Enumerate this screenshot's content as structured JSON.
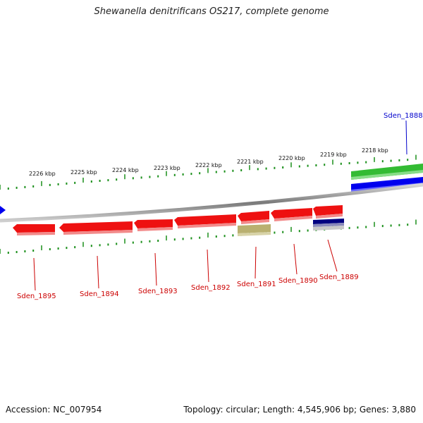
{
  "title": "Shewanella denitrificans OS217, complete genome",
  "footer": {
    "accession": "Accession: NC_007954",
    "stats": "Topology: circular; Length: 4,545,906 bp; Genes: 3,880"
  },
  "colors": {
    "forward_tick": "#1a8f1a",
    "backbone": "#8a8a8a",
    "gene_red": "#ee1111",
    "gene_label_red": "#cc0000",
    "gene_label_blue": "#0000cc",
    "green_feature": "#33bb33",
    "blue_feature": "#0000ee",
    "olive_feature": "#b9b070",
    "navy_feature": "#000080"
  },
  "kbp_labels": [
    "2218 kbp",
    "2219 kbp",
    "2220 kbp",
    "2221 kbp",
    "2222 kbp",
    "2223 kbp",
    "2224 kbp",
    "2225 kbp",
    "2226 kbp"
  ],
  "genes": [
    {
      "name": "Sden_1888",
      "color": "blue"
    },
    {
      "name": "Sden_1889",
      "color": "red"
    },
    {
      "name": "Sden_1890",
      "color": "red"
    },
    {
      "name": "Sden_1891",
      "color": "red"
    },
    {
      "name": "Sden_1892",
      "color": "red"
    },
    {
      "name": "Sden_1893",
      "color": "red"
    },
    {
      "name": "Sden_1894",
      "color": "red"
    },
    {
      "name": "Sden_1895",
      "color": "red"
    }
  ]
}
